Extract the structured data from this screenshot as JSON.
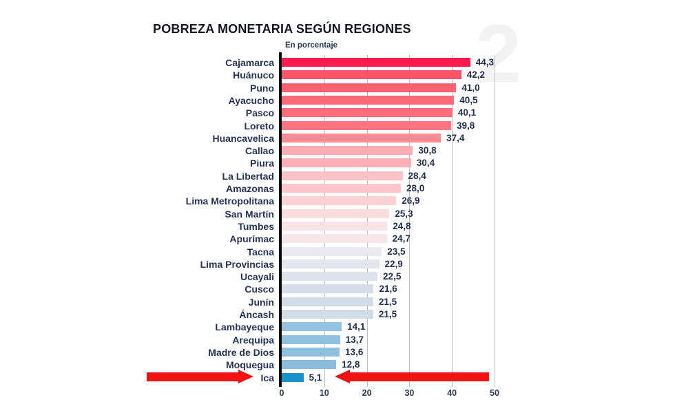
{
  "title": "POBREZA MONETARIA SEGÚN REGIONES",
  "subtitle": "En porcentaje",
  "watermark_glyph": "2",
  "chart_data": {
    "type": "bar",
    "orientation": "horizontal",
    "title": "POBREZA MONETARIA SEGÚN REGIONES",
    "subtitle": "En porcentaje",
    "xlabel": "",
    "ylabel": "",
    "xlim": [
      0,
      50
    ],
    "x_ticks": [
      0,
      10,
      20,
      30,
      40,
      50
    ],
    "grid": true,
    "categories": [
      "Cajamarca",
      "Huánuco",
      "Puno",
      "Ayacucho",
      "Pasco",
      "Loreto",
      "Huancavelica",
      "Callao",
      "Piura",
      "La Libertad",
      "Amazonas",
      "Lima Metropolitana",
      "San Martín",
      "Tumbes",
      "Apurímac",
      "Tacna",
      "Lima Provincias",
      "Ucayali",
      "Cusco",
      "Junín",
      "Áncash",
      "Lambayeque",
      "Arequipa",
      "Madre de Dios",
      "Moquegua",
      "Ica"
    ],
    "values": [
      44.3,
      42.2,
      41.0,
      40.5,
      40.1,
      39.8,
      37.4,
      30.8,
      30.4,
      28.4,
      28.0,
      26.9,
      25.3,
      24.8,
      24.7,
      23.5,
      22.9,
      22.5,
      21.6,
      21.5,
      21.5,
      14.1,
      13.7,
      13.6,
      12.8,
      5.1
    ],
    "value_labels": [
      "44,3",
      "42,2",
      "41,0",
      "40,5",
      "40,1",
      "39,8",
      "37,4",
      "30,8",
      "30,4",
      "28,4",
      "28,0",
      "26,9",
      "25,3",
      "24,8",
      "24,7",
      "23,5",
      "22,9",
      "22,5",
      "21,6",
      "21,5",
      "21,5",
      "14,1",
      "13,7",
      "13,6",
      "12,8",
      "5,1"
    ],
    "bar_colors": [
      "#f91c4d",
      "#fa5468",
      "#fa6270",
      "#fa6a77",
      "#fa6f7b",
      "#fb747f",
      "#fb8b93",
      "#fcacb3",
      "#fcafb6",
      "#fcc3c7",
      "#fcc6ca",
      "#fcd1d3",
      "#fadcdd",
      "#f8e2e3",
      "#f7e6e9",
      "#e9e9ef",
      "#e2e6ed",
      "#dde3eb",
      "#d4dde8",
      "#d2dce8",
      "#d2dce8",
      "#94c3e1",
      "#90c1e0",
      "#8fc0df",
      "#8abddd",
      "#1792c8"
    ],
    "highlight": {
      "region": "Ica",
      "annotation": "two red arrows pointing at the Ica row",
      "arrow_color": "#ee1212"
    }
  },
  "colors": {
    "title_text": "#131722",
    "label_text": "#25335a",
    "value_text": "#212f52",
    "grid": "#bdbdbd",
    "zero_axis": "#0a0a0a",
    "arrow": "#ee1212",
    "background": "#ffffff"
  }
}
